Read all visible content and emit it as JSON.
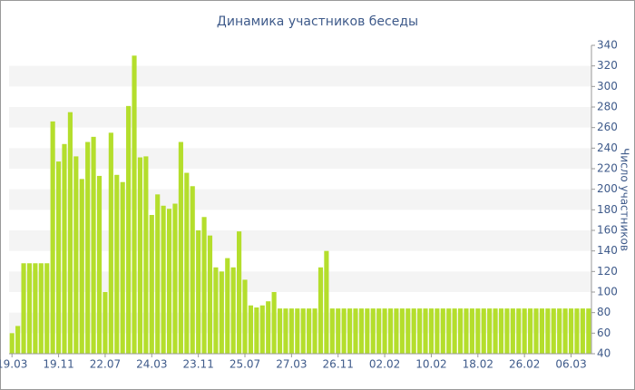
{
  "chart_data": {
    "type": "bar",
    "title": "Динамика участников беседы",
    "y_label": "Число участников",
    "categories": [
      "19.03",
      null,
      null,
      null,
      null,
      null,
      null,
      null,
      "19.11",
      null,
      null,
      null,
      null,
      null,
      null,
      null,
      "22.07",
      null,
      null,
      null,
      null,
      null,
      null,
      null,
      "24.03",
      null,
      null,
      null,
      null,
      null,
      null,
      null,
      "23.11",
      null,
      null,
      null,
      null,
      null,
      null,
      null,
      "25.07",
      null,
      null,
      null,
      null,
      null,
      null,
      null,
      "27.03",
      null,
      null,
      null,
      null,
      null,
      null,
      null,
      "26.11",
      null,
      null,
      null,
      null,
      null,
      null,
      null,
      "02.02",
      null,
      null,
      null,
      null,
      null,
      null,
      null,
      "10.02",
      null,
      null,
      null,
      null,
      null,
      null,
      null,
      "18.02",
      null,
      null,
      null,
      null,
      null,
      null,
      null,
      "26.02",
      null,
      null,
      null,
      null,
      null,
      null,
      null,
      "06.03",
      null,
      null,
      null
    ],
    "values": [
      60,
      67,
      128,
      128,
      128,
      128,
      128,
      266,
      227,
      244,
      275,
      232,
      210,
      246,
      251,
      213,
      100,
      255,
      214,
      207,
      281,
      330,
      231,
      232,
      175,
      195,
      184,
      181,
      186,
      246,
      216,
      203,
      160,
      173,
      155,
      124,
      120,
      133,
      124,
      159,
      112,
      87,
      85,
      87,
      91,
      100,
      84,
      84,
      84,
      84,
      84,
      84,
      84,
      124,
      140,
      84,
      84,
      84,
      84,
      84,
      84,
      84,
      84,
      84,
      84,
      84,
      84,
      84,
      84,
      84,
      84,
      84,
      84,
      84,
      84,
      84,
      84,
      84,
      84,
      84,
      84,
      84,
      84,
      84,
      84,
      84,
      84,
      84,
      84,
      84,
      84,
      84,
      84,
      84,
      84,
      84,
      84,
      84,
      84,
      84
    ],
    "color": "#b4de2c",
    "ylim": [
      40,
      340
    ],
    "yticks": [
      40,
      60,
      80,
      100,
      120,
      140,
      160,
      180,
      200,
      220,
      240,
      260,
      280,
      300,
      320,
      340
    ],
    "grid": true
  }
}
